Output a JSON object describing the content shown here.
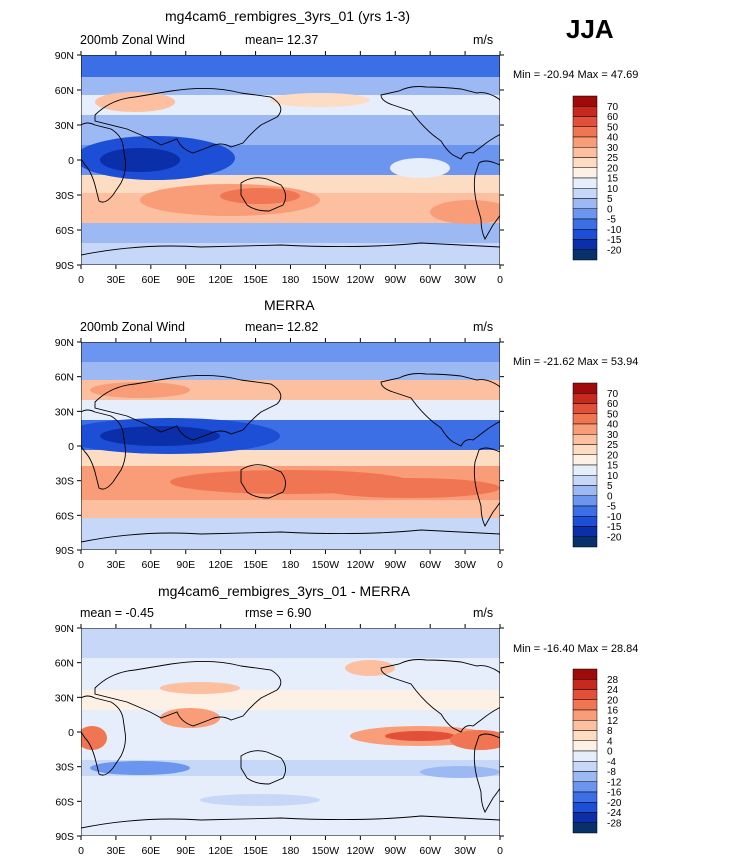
{
  "season": "JJA",
  "colors": {
    "wind_scale": [
      "#08306b",
      "#0a2fa8",
      "#1c4fd6",
      "#3c6ee6",
      "#6b95ef",
      "#9cb9f3",
      "#c6d7f7",
      "#e6edfb",
      "#fdf1e6",
      "#fddcc4",
      "#fcc0a0",
      "#f99c78",
      "#f07552",
      "#e2503a",
      "#c8291f",
      "#9f0a0a"
    ],
    "diff_scale": [
      "#08306b",
      "#0a2fa8",
      "#1c4fd6",
      "#3c6ee6",
      "#6b95ef",
      "#9cb9f3",
      "#c6d7f7",
      "#e6edfb",
      "#fdf1e6",
      "#fddcc4",
      "#fcc0a0",
      "#f99c78",
      "#f07552",
      "#e2503a",
      "#c8291f",
      "#9f0a0a"
    ],
    "coastline": "#000000"
  },
  "axes": {
    "lat_labels": [
      "90N",
      "60N",
      "30N",
      "0",
      "30S",
      "60S",
      "90S"
    ],
    "lon_labels": [
      "0",
      "30E",
      "60E",
      "90E",
      "120E",
      "150E",
      "180",
      "150W",
      "120W",
      "90W",
      "60W",
      "30W",
      "0"
    ]
  },
  "panels": [
    {
      "title": "mg4cam6_rembigres_3yrs_01 (yrs 1-3)",
      "left_label": "200mb Zonal Wind",
      "center_label": "mean=  12.37",
      "units": "m/s",
      "minmax": "Min = -20.94 Max =  47.69",
      "colorbar_labels": [
        "70",
        "60",
        "50",
        "40",
        "30",
        "25",
        "20",
        "15",
        "10",
        "5",
        "0",
        "-5",
        "-10",
        "-15",
        "-20"
      ]
    },
    {
      "title": "MERRA",
      "left_label": "200mb Zonal Wind",
      "center_label": "mean=  12.82",
      "units": "m/s",
      "minmax": "Min = -21.62 Max =  53.94",
      "colorbar_labels": [
        "70",
        "60",
        "50",
        "40",
        "30",
        "25",
        "20",
        "15",
        "10",
        "5",
        "0",
        "-5",
        "-10",
        "-15",
        "-20"
      ]
    },
    {
      "title": "mg4cam6_rembigres_3yrs_01 - MERRA",
      "left_label": "mean =  -0.45",
      "center_label": "rmse =   6.90",
      "units": "m/s",
      "minmax": "Min = -16.40 Max =  28.84",
      "colorbar_labels": [
        "28",
        "24",
        "20",
        "16",
        "12",
        "8",
        "4",
        "0",
        "-4",
        "-8",
        "-12",
        "-16",
        "-20",
        "-24",
        "-28"
      ]
    }
  ]
}
